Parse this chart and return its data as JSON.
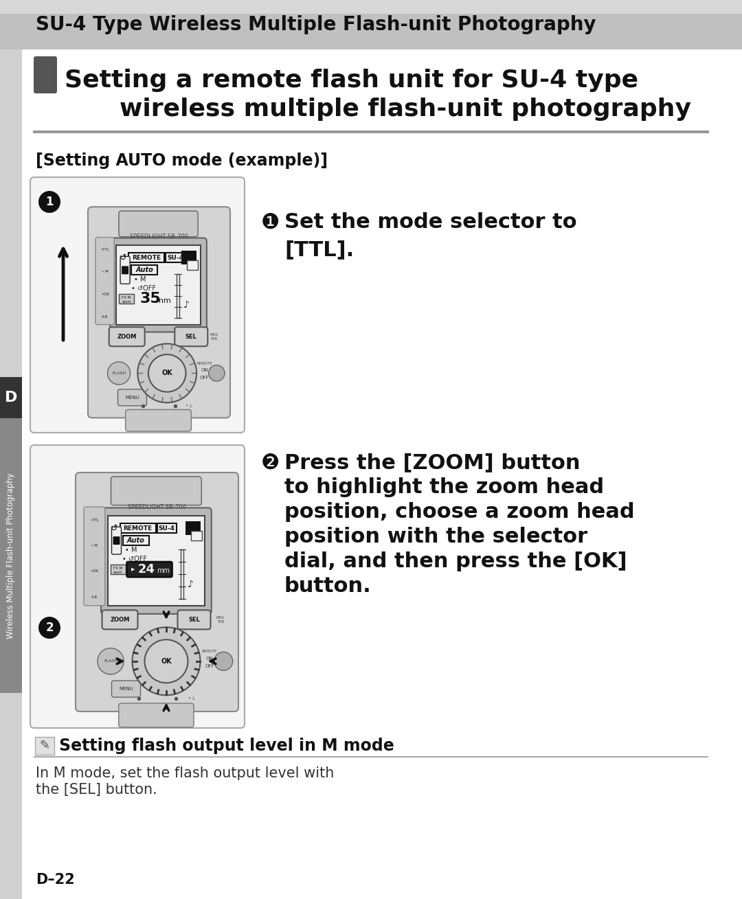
{
  "bg_color": "#ffffff",
  "header_bg": "#c0c0c0",
  "header_text": "SU-4 Type Wireless Multiple Flash-unit Photography",
  "section_title_line1": "Setting a remote flash unit for SU-4 type",
  "section_title_line2": "wireless multiple flash-unit photography",
  "auto_mode_label": "[Setting AUTO mode (example)]",
  "step1_circle": "❶",
  "step1_line1": "Set the mode selector to",
  "step1_line2": "[TTL].",
  "step2_circle": "❷",
  "step2_line1": "Press the [ZOOM] button",
  "step2_line2": "to highlight the zoom head",
  "step2_line3": "position, choose a zoom head",
  "step2_line4": "position with the selector",
  "step2_line5": "dial, and then press the [OK]",
  "step2_line6": "button.",
  "note_title": "Setting flash output level in M mode",
  "note_body1": "In M mode, set the flash output level with",
  "note_body2": "the [SEL] button.",
  "page_label": "D–22",
  "side_label": "Wireless Multiple Flash-unit Photography",
  "gray_light": "#c8c8c8",
  "gray_med": "#a0a0a0",
  "gray_dark": "#606060",
  "text_black": "#1a1a1a",
  "white": "#ffffff",
  "lcd_bg": "#e8e8e8",
  "body_fill": "#d4d4d4",
  "body_edge": "#888888"
}
